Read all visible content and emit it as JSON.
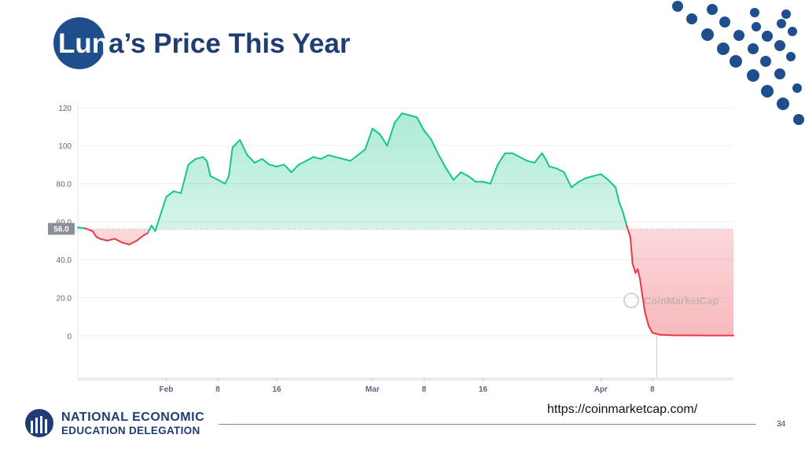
{
  "slide": {
    "title_lead": "Lun",
    "title_rest": "a’s Price This Year",
    "source_url": "https://coinmarketcap.com/",
    "page_number": "34",
    "org_line1": "NATIONAL ECONOMIC",
    "org_line2": "EDUCATION DELEGATION",
    "colors": {
      "title": "#1f3c73",
      "accent_circle": "#1f4e8c",
      "dots": "#1f4e8c",
      "footer_line": "#6f8db0"
    }
  },
  "chart_data": {
    "type": "area",
    "watermark": "CoinMarketCap",
    "baseline_value": 56.0,
    "baseline_label": "56.0",
    "y_ticks": [
      {
        "value": 120,
        "label": "120"
      },
      {
        "value": 100,
        "label": "100"
      },
      {
        "value": 80,
        "label": "80.0"
      },
      {
        "value": 60,
        "label": "60.0"
      },
      {
        "value": 40,
        "label": "40.0"
      },
      {
        "value": 20,
        "label": "20.0"
      },
      {
        "value": 0,
        "label": "0"
      }
    ],
    "x_ticks": [
      {
        "day": 31,
        "label": "Feb"
      },
      {
        "day": 38,
        "label": "8"
      },
      {
        "day": 46,
        "label": "16"
      },
      {
        "day": 59,
        "label": "Mar"
      },
      {
        "day": 66,
        "label": "8"
      },
      {
        "day": 74,
        "label": "16"
      },
      {
        "day": 90,
        "label": "Apr"
      },
      {
        "day": 97,
        "label": "8"
      }
    ],
    "ylim": [
      -22,
      122
    ],
    "xlim": [
      19,
      108
    ],
    "grid": true,
    "colors": {
      "above": "#16c784",
      "below": "#ea3943",
      "baseline": "#9aa0a6",
      "grid": "#eeeeee",
      "tick_text": "#58667e"
    },
    "series": [
      {
        "points": [
          [
            19,
            57
          ],
          [
            20,
            56.5
          ],
          [
            21,
            55
          ],
          [
            21.5,
            52
          ],
          [
            22,
            51
          ],
          [
            23,
            50
          ],
          [
            24,
            51
          ],
          [
            25,
            49
          ],
          [
            26,
            48
          ],
          [
            27,
            50
          ],
          [
            28,
            53
          ],
          [
            28.5,
            54
          ],
          [
            29,
            58
          ],
          [
            29.5,
            55
          ],
          [
            30,
            61
          ],
          [
            30.5,
            67
          ],
          [
            31,
            73
          ],
          [
            32,
            76
          ],
          [
            33,
            75
          ],
          [
            34,
            90
          ],
          [
            35,
            93
          ],
          [
            36,
            94
          ],
          [
            36.5,
            92
          ],
          [
            37,
            84
          ],
          [
            38,
            82
          ],
          [
            39,
            80
          ],
          [
            39.5,
            84
          ],
          [
            40,
            99
          ],
          [
            41,
            103
          ],
          [
            42,
            95
          ],
          [
            43,
            91
          ],
          [
            44,
            93
          ],
          [
            45,
            90
          ],
          [
            46,
            89
          ],
          [
            47,
            90
          ],
          [
            48,
            86
          ],
          [
            49,
            90
          ],
          [
            50,
            92
          ],
          [
            51,
            94
          ],
          [
            52,
            93
          ],
          [
            53,
            95
          ],
          [
            54,
            94
          ],
          [
            55,
            93
          ],
          [
            56,
            92
          ],
          [
            57,
            95
          ],
          [
            58,
            98
          ],
          [
            59,
            109
          ],
          [
            60,
            106
          ],
          [
            61,
            100
          ],
          [
            62,
            112
          ],
          [
            63,
            117
          ],
          [
            64,
            116
          ],
          [
            65,
            115
          ],
          [
            66,
            108
          ],
          [
            67,
            103
          ],
          [
            68,
            95
          ],
          [
            69,
            88
          ],
          [
            70,
            82
          ],
          [
            71,
            86
          ],
          [
            72,
            84
          ],
          [
            73,
            81
          ],
          [
            74,
            81
          ],
          [
            75,
            80
          ],
          [
            76,
            90
          ],
          [
            77,
            96
          ],
          [
            78,
            96
          ],
          [
            79,
            94
          ],
          [
            80,
            92
          ],
          [
            81,
            91
          ],
          [
            82,
            96
          ],
          [
            82.5,
            93
          ],
          [
            83,
            89
          ],
          [
            84,
            88
          ],
          [
            85,
            86
          ],
          [
            86,
            78
          ],
          [
            87,
            81
          ],
          [
            88,
            83
          ],
          [
            89,
            84
          ],
          [
            90,
            85
          ],
          [
            91,
            82
          ],
          [
            92,
            78
          ],
          [
            92.5,
            70
          ],
          [
            93,
            65
          ],
          [
            93.5,
            58
          ],
          [
            94,
            52
          ],
          [
            94.3,
            38
          ],
          [
            94.7,
            33
          ],
          [
            95,
            35
          ],
          [
            95.3,
            30
          ],
          [
            95.6,
            22
          ],
          [
            96,
            12
          ],
          [
            96.5,
            5
          ],
          [
            97,
            1.5
          ],
          [
            98,
            0.5
          ],
          [
            100,
            0.2
          ],
          [
            104,
            0.1
          ],
          [
            108,
            0.1
          ]
        ]
      }
    ]
  }
}
